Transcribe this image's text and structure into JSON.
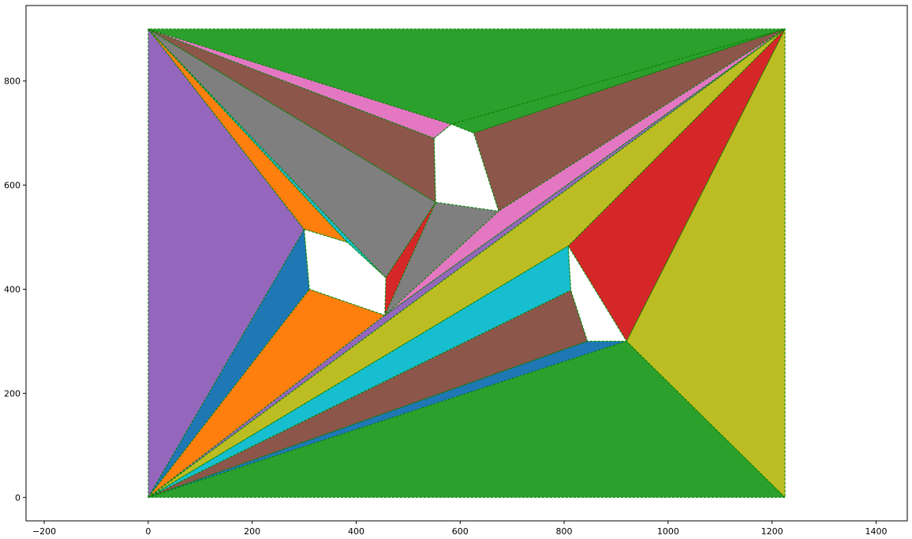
{
  "chart_data": {
    "type": "triangulation",
    "title": "",
    "xlabel": "",
    "ylabel": "",
    "xlim": [
      -235,
      1460
    ],
    "ylim": [
      -45,
      945
    ],
    "xticks": [
      -200,
      0,
      200,
      400,
      600,
      800,
      1000,
      1200,
      1400
    ],
    "yticks": [
      0,
      200,
      400,
      600,
      800
    ],
    "edge_color": "#008000",
    "holes": [
      [
        [
          300,
          515
        ],
        [
          310,
          400
        ],
        [
          455,
          350
        ],
        [
          457,
          422
        ],
        [
          383,
          490
        ]
      ],
      [
        [
          550,
          690
        ],
        [
          583,
          717
        ],
        [
          626,
          700
        ],
        [
          674,
          550
        ],
        [
          553,
          567
        ]
      ],
      [
        [
          808,
          483
        ],
        [
          920,
          300
        ],
        [
          845,
          300
        ],
        [
          813,
          398
        ]
      ]
    ],
    "triangles": [
      {
        "color": "#9467bd",
        "points": [
          [
            0,
            0
          ],
          [
            0,
            900
          ],
          [
            300,
            515
          ]
        ]
      },
      {
        "color": "#1f77b4",
        "points": [
          [
            0,
            0
          ],
          [
            300,
            515
          ],
          [
            310,
            400
          ]
        ]
      },
      {
        "color": "#ff7f0e",
        "points": [
          [
            0,
            0
          ],
          [
            310,
            400
          ],
          [
            455,
            350
          ]
        ]
      },
      {
        "color": "#9467bd",
        "points": [
          [
            0,
            0
          ],
          [
            455,
            350
          ],
          [
            1225,
            900
          ]
        ]
      },
      {
        "color": "#bcbd22",
        "points": [
          [
            0,
            0
          ],
          [
            1225,
            900
          ],
          [
            808,
            483
          ]
        ]
      },
      {
        "color": "#17becf",
        "points": [
          [
            0,
            0
          ],
          [
            808,
            483
          ],
          [
            813,
            398
          ]
        ]
      },
      {
        "color": "#8c564b",
        "points": [
          [
            0,
            0
          ],
          [
            813,
            398
          ],
          [
            845,
            300
          ]
        ]
      },
      {
        "color": "#1f77b4",
        "points": [
          [
            0,
            0
          ],
          [
            845,
            300
          ],
          [
            920,
            300
          ]
        ]
      },
      {
        "color": "#2ca02c",
        "points": [
          [
            0,
            0
          ],
          [
            920,
            300
          ],
          [
            1225,
            0
          ]
        ]
      },
      {
        "color": "#bcbd22",
        "points": [
          [
            1225,
            0
          ],
          [
            920,
            300
          ],
          [
            1225,
            900
          ]
        ]
      },
      {
        "color": "#d62728",
        "points": [
          [
            920,
            300
          ],
          [
            808,
            483
          ],
          [
            1225,
            900
          ]
        ]
      },
      {
        "color": "#ff7f0e",
        "points": [
          [
            0,
            900
          ],
          [
            300,
            515
          ],
          [
            383,
            490
          ]
        ]
      },
      {
        "color": "#17becf",
        "points": [
          [
            0,
            900
          ],
          [
            383,
            490
          ],
          [
            457,
            422
          ]
        ]
      },
      {
        "color": "#7f7f7f",
        "points": [
          [
            0,
            900
          ],
          [
            457,
            422
          ],
          [
            553,
            567
          ]
        ]
      },
      {
        "color": "#8c564b",
        "points": [
          [
            0,
            900
          ],
          [
            553,
            567
          ],
          [
            550,
            690
          ]
        ]
      },
      {
        "color": "#e377c2",
        "points": [
          [
            0,
            900
          ],
          [
            550,
            690
          ],
          [
            583,
            717
          ]
        ]
      },
      {
        "color": "#2ca02c",
        "points": [
          [
            0,
            900
          ],
          [
            583,
            717
          ],
          [
            1225,
            900
          ]
        ]
      },
      {
        "color": "#2ca02c",
        "points": [
          [
            583,
            717
          ],
          [
            626,
            700
          ],
          [
            1225,
            900
          ]
        ]
      },
      {
        "color": "#8c564b",
        "points": [
          [
            626,
            700
          ],
          [
            674,
            550
          ],
          [
            1225,
            900
          ]
        ]
      },
      {
        "color": "#e377c2",
        "points": [
          [
            674,
            550
          ],
          [
            455,
            350
          ],
          [
            1225,
            900
          ]
        ]
      },
      {
        "color": "#7f7f7f",
        "points": [
          [
            553,
            567
          ],
          [
            674,
            550
          ],
          [
            455,
            350
          ]
        ]
      },
      {
        "color": "#d62728",
        "points": [
          [
            457,
            422
          ],
          [
            553,
            567
          ],
          [
            455,
            350
          ]
        ]
      }
    ]
  }
}
